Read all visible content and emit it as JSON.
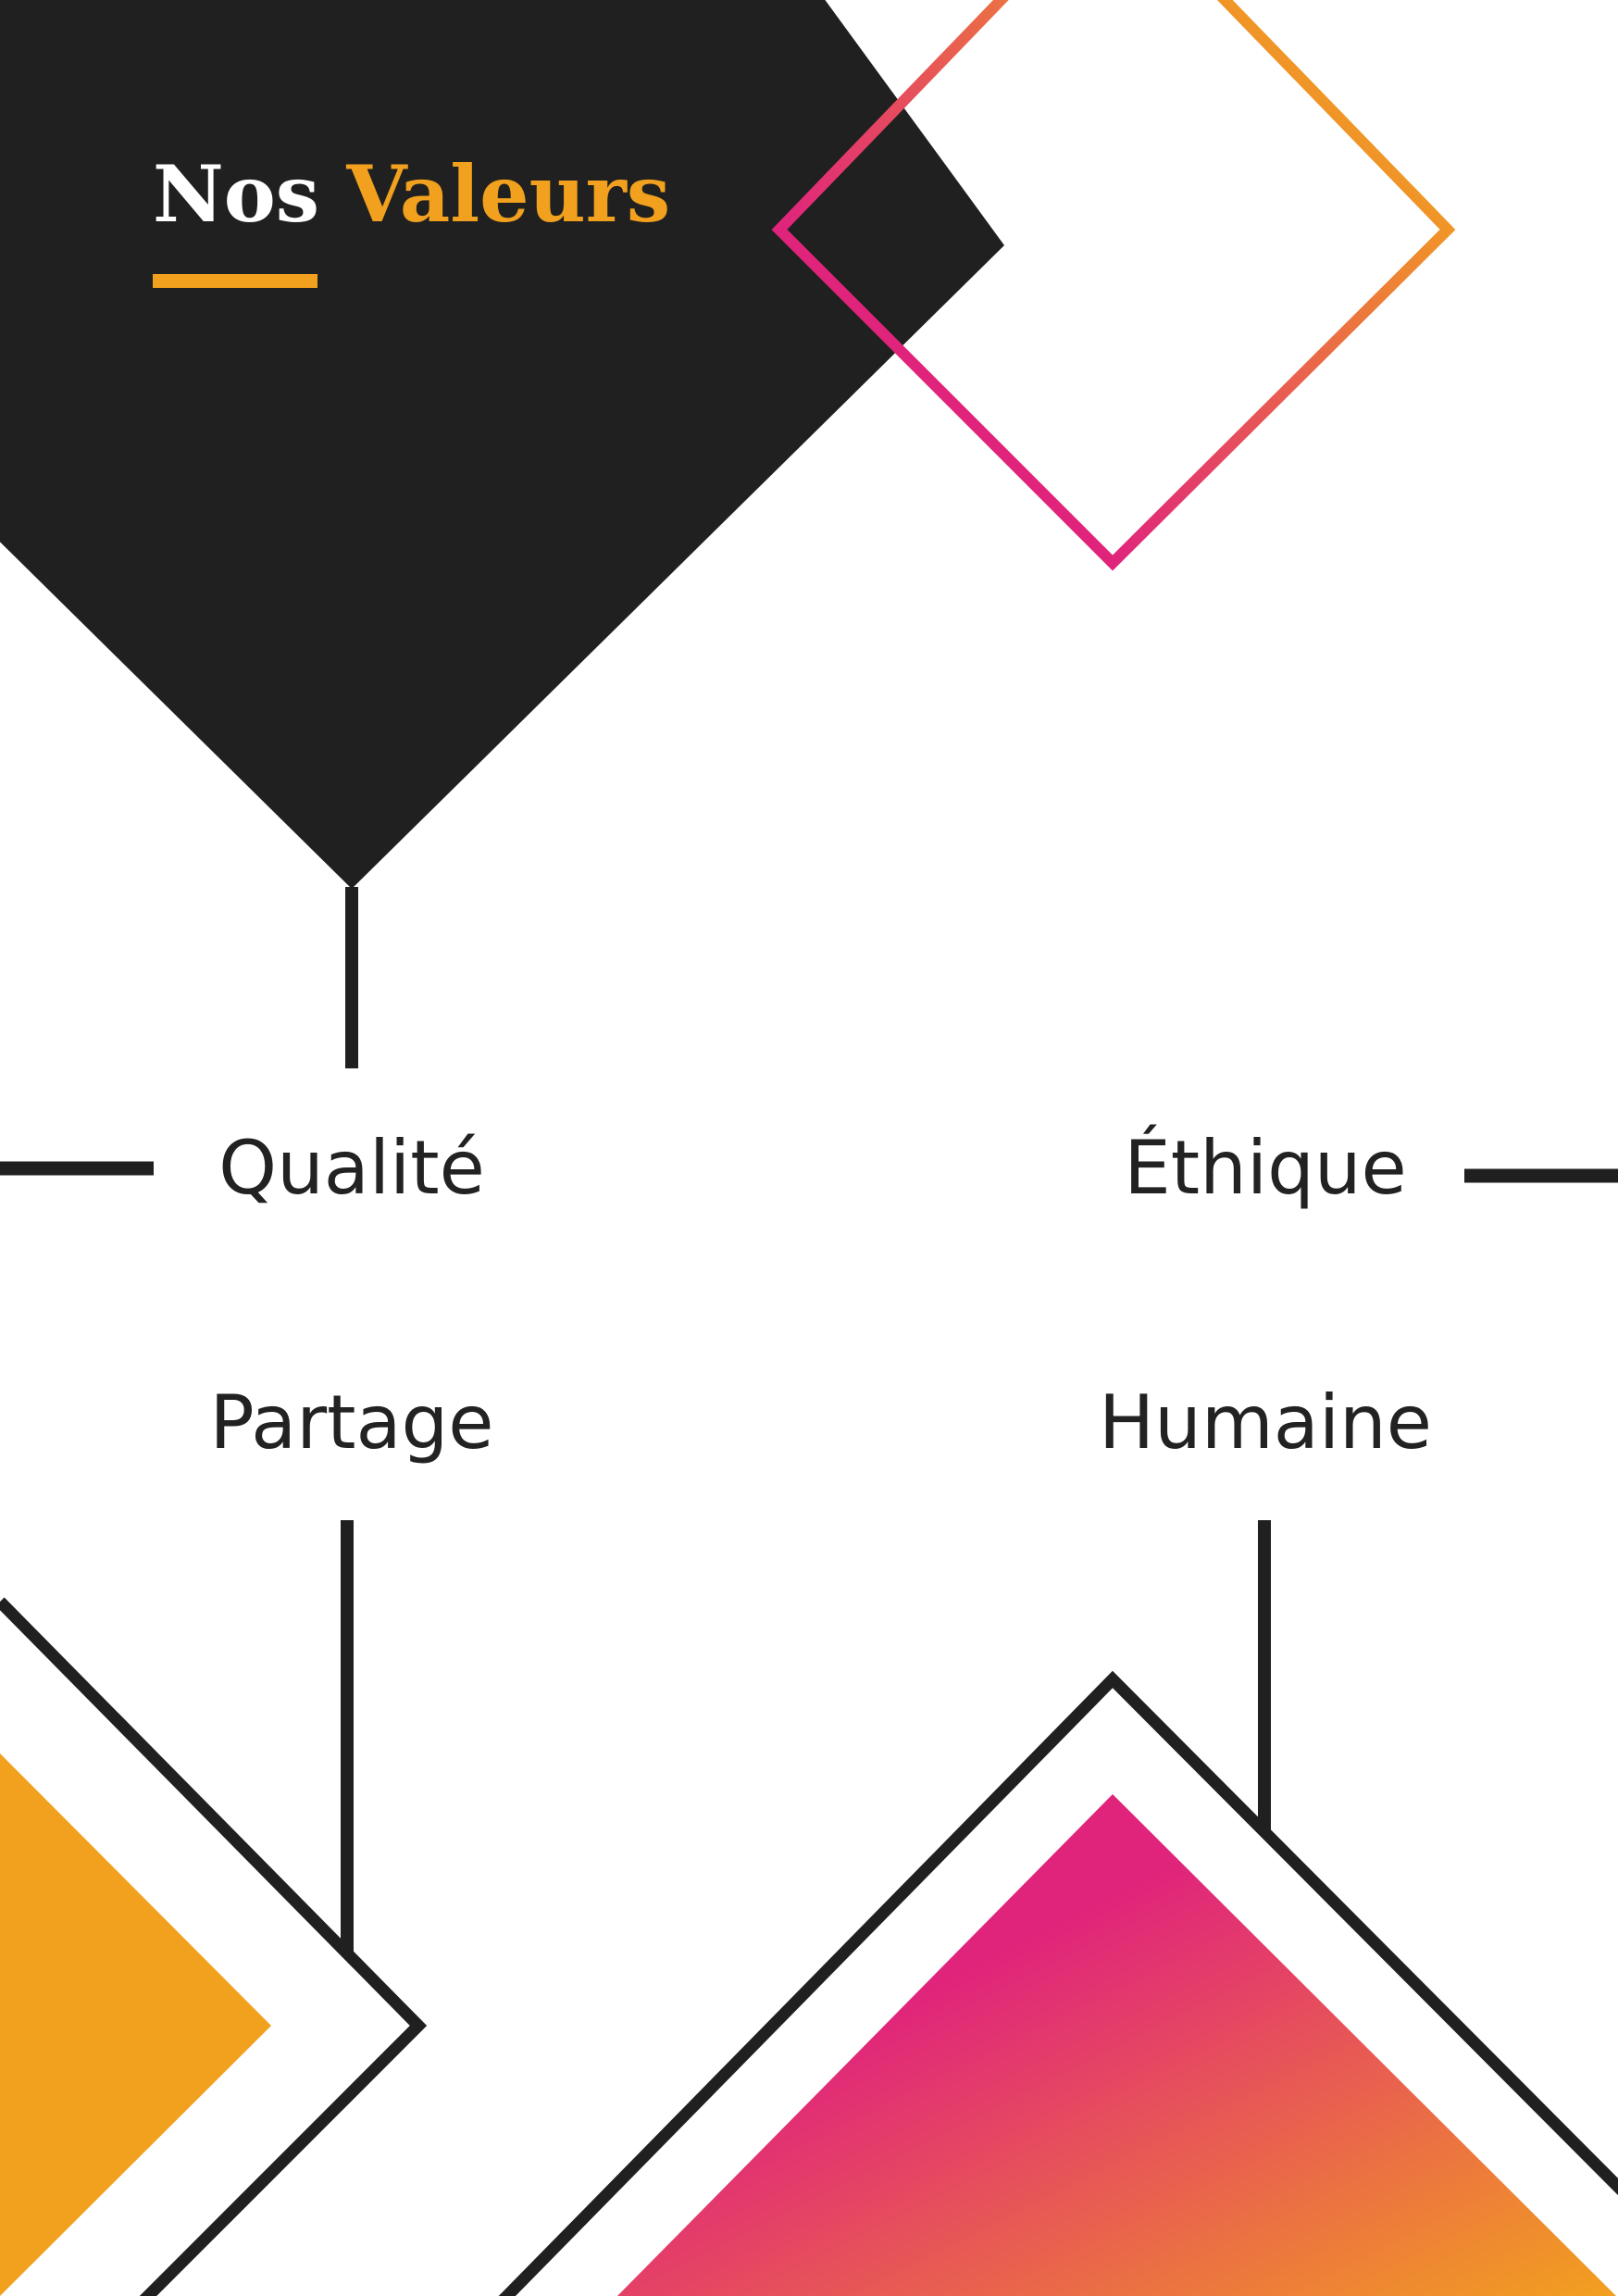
{
  "title": {
    "word1": "Nos",
    "word2": "Valeurs"
  },
  "values": {
    "top_left": "Qualité",
    "top_right": "Éthique",
    "bottom_left": "Partage",
    "bottom_right": "Humaine"
  },
  "colors": {
    "black": "#202020",
    "orange": "#f2a11e",
    "pink": "#e0247c",
    "white": "#ffffff"
  }
}
